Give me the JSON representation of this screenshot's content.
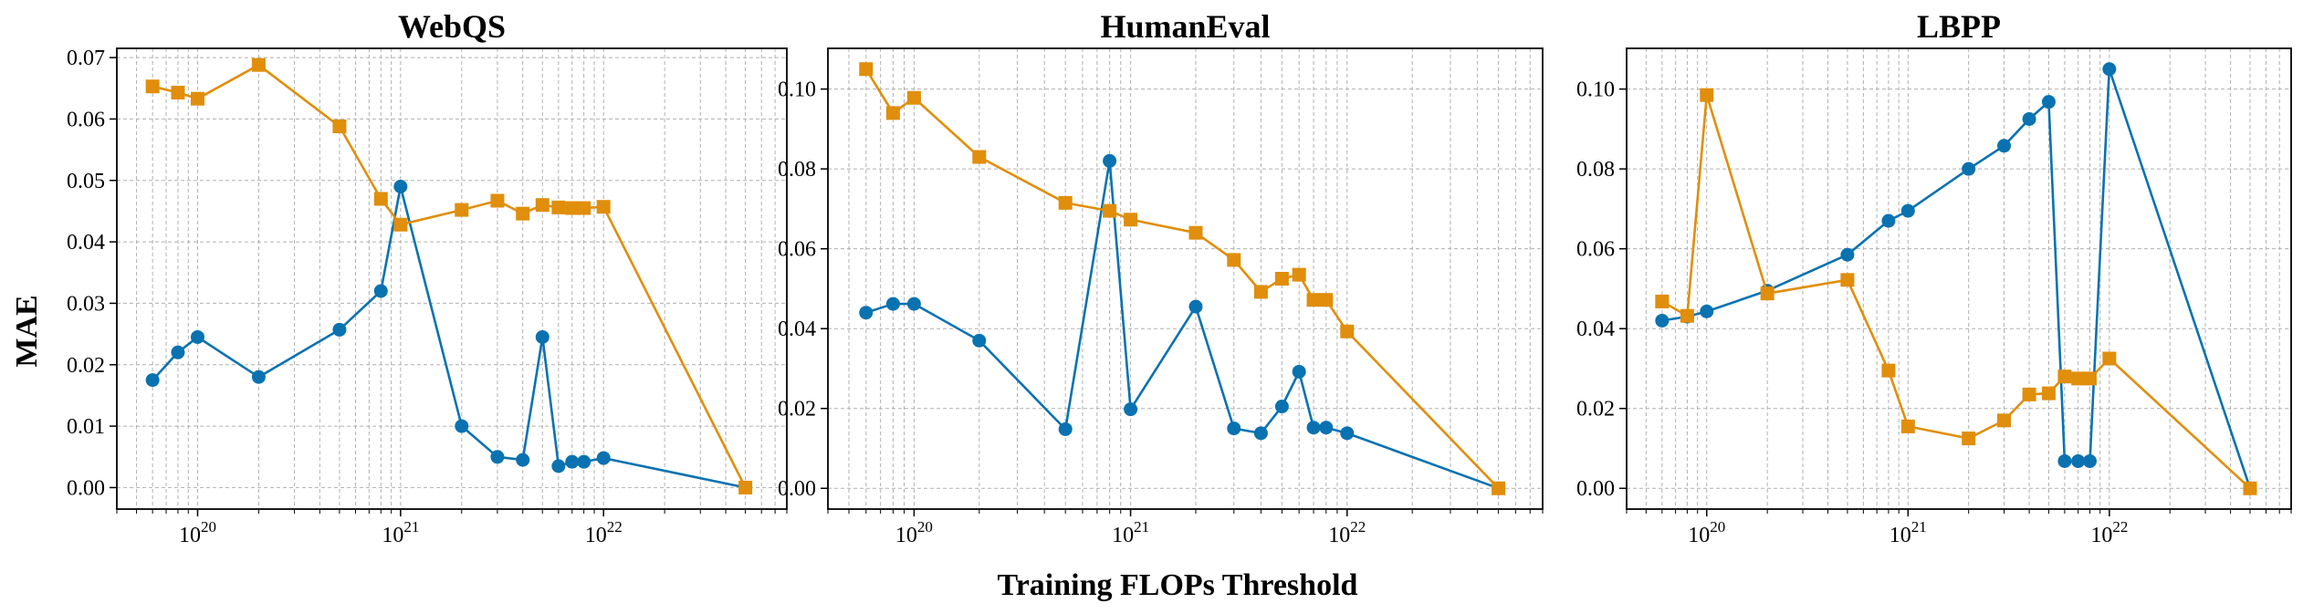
{
  "figure": {
    "ylabel": "MAE",
    "xlabel": "Training FLOPs Threshold",
    "colors": {
      "blue": "#0a72b0",
      "orange": "#e08e0b",
      "grid": "#b0b0b0"
    }
  },
  "chart_data": [
    {
      "type": "line",
      "title": "WebQS",
      "xscale": "log",
      "xlim": [
        4e+19,
        8e+22
      ],
      "ylim": [
        -0.0035,
        0.0715
      ],
      "yticks": [
        0.0,
        0.01,
        0.02,
        0.03,
        0.04,
        0.05,
        0.06,
        0.07
      ],
      "ytick_labels": [
        "0.00",
        "0.01",
        "0.02",
        "0.03",
        "0.04",
        "0.05",
        "0.06",
        "0.07"
      ],
      "xticks": [
        {
          "base": "10",
          "exp": "20",
          "value": 1e+20
        },
        {
          "base": "10",
          "exp": "21",
          "value": 1e+21
        },
        {
          "base": "10",
          "exp": "22",
          "value": 1e+22
        }
      ],
      "grid": true,
      "series": [
        {
          "color": "#0a72b0",
          "marker": "circle",
          "x": [
            6e+19,
            8e+19,
            1e+20,
            2e+20,
            5e+20,
            8e+20,
            1e+21,
            2e+21,
            3e+21,
            4e+21,
            5e+21,
            6e+21,
            7e+21,
            8e+21,
            1e+22,
            5e+22
          ],
          "y": [
            0.0175,
            0.022,
            0.0245,
            0.018,
            0.0257,
            0.032,
            0.049,
            0.01,
            0.005,
            0.0045,
            0.0245,
            0.0035,
            0.0042,
            0.0042,
            0.0048,
            0.0
          ]
        },
        {
          "color": "#e08e0b",
          "marker": "square",
          "x": [
            6e+19,
            8e+19,
            1e+20,
            2e+20,
            5e+20,
            8e+20,
            1e+21,
            2e+21,
            3e+21,
            4e+21,
            5e+21,
            6e+21,
            7e+21,
            8e+21,
            1e+22,
            5e+22
          ],
          "y": [
            0.0653,
            0.0643,
            0.0633,
            0.0688,
            0.0588,
            0.047,
            0.0428,
            0.0452,
            0.0467,
            0.0446,
            0.046,
            0.0456,
            0.0455,
            0.0455,
            0.0457,
            0.0
          ]
        }
      ]
    },
    {
      "type": "line",
      "title": "HumanEval",
      "xscale": "log",
      "xlim": [
        4e+19,
        8e+22
      ],
      "ylim": [
        -0.0052,
        0.1102
      ],
      "yticks": [
        0.0,
        0.02,
        0.04,
        0.06,
        0.08,
        0.1
      ],
      "ytick_labels": [
        "0.00",
        "0.02",
        "0.04",
        "0.06",
        "0.08",
        "0.10"
      ],
      "xticks": [
        {
          "base": "10",
          "exp": "20",
          "value": 1e+20
        },
        {
          "base": "10",
          "exp": "21",
          "value": 1e+21
        },
        {
          "base": "10",
          "exp": "22",
          "value": 1e+22
        }
      ],
      "grid": true,
      "series": [
        {
          "color": "#0a72b0",
          "marker": "circle",
          "x": [
            6e+19,
            8e+19,
            1e+20,
            2e+20,
            5e+20,
            8e+20,
            1e+21,
            2e+21,
            3e+21,
            4e+21,
            5e+21,
            6e+21,
            7e+21,
            8e+21,
            1e+22,
            5e+22
          ],
          "y": [
            0.044,
            0.0462,
            0.0462,
            0.037,
            0.0148,
            0.082,
            0.0198,
            0.0455,
            0.015,
            0.0138,
            0.0205,
            0.0292,
            0.0152,
            0.0152,
            0.0138,
            0.0
          ]
        },
        {
          "color": "#e08e0b",
          "marker": "square",
          "x": [
            6e+19,
            8e+19,
            1e+20,
            2e+20,
            5e+20,
            8e+20,
            1e+21,
            2e+21,
            3e+21,
            4e+21,
            5e+21,
            6e+21,
            7e+21,
            8e+21,
            1e+22,
            5e+22
          ],
          "y": [
            0.105,
            0.094,
            0.0978,
            0.083,
            0.0715,
            0.0695,
            0.0673,
            0.064,
            0.0572,
            0.0492,
            0.0525,
            0.0535,
            0.0472,
            0.0472,
            0.0393,
            0.0
          ]
        }
      ]
    },
    {
      "type": "line",
      "title": "LBPP",
      "xscale": "log",
      "xlim": [
        4e+19,
        8e+22
      ],
      "ylim": [
        -0.0052,
        0.1102
      ],
      "yticks": [
        0.0,
        0.02,
        0.04,
        0.06,
        0.08,
        0.1
      ],
      "ytick_labels": [
        "0.00",
        "0.02",
        "0.04",
        "0.06",
        "0.08",
        "0.10"
      ],
      "xticks": [
        {
          "base": "10",
          "exp": "20",
          "value": 1e+20
        },
        {
          "base": "10",
          "exp": "21",
          "value": 1e+21
        },
        {
          "base": "10",
          "exp": "22",
          "value": 1e+22
        }
      ],
      "grid": true,
      "series": [
        {
          "color": "#0a72b0",
          "marker": "circle",
          "x": [
            6e+19,
            8e+19,
            1e+20,
            2e+20,
            5e+20,
            8e+20,
            1e+21,
            2e+21,
            3e+21,
            4e+21,
            5e+21,
            6e+21,
            7e+21,
            8e+21,
            1e+22,
            5e+22
          ],
          "y": [
            0.042,
            0.043,
            0.0443,
            0.0495,
            0.0585,
            0.067,
            0.0695,
            0.08,
            0.0858,
            0.0925,
            0.0968,
            0.0068,
            0.0068,
            0.0068,
            0.105,
            0.0
          ]
        },
        {
          "color": "#e08e0b",
          "marker": "square",
          "x": [
            6e+19,
            8e+19,
            1e+20,
            2e+20,
            5e+20,
            8e+20,
            1e+21,
            2e+21,
            3e+21,
            4e+21,
            5e+21,
            6e+21,
            7e+21,
            8e+21,
            1e+22,
            5e+22
          ],
          "y": [
            0.0468,
            0.0432,
            0.0985,
            0.0488,
            0.0522,
            0.0295,
            0.0155,
            0.0125,
            0.017,
            0.0235,
            0.0238,
            0.028,
            0.0275,
            0.0275,
            0.0325,
            0.0
          ]
        }
      ]
    }
  ]
}
